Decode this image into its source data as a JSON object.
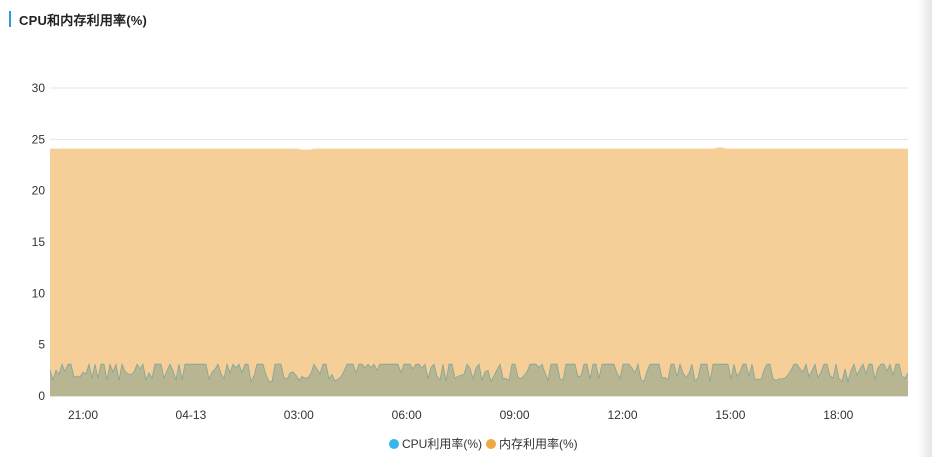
{
  "header": {
    "title": "CPU和内存利用率(%)"
  },
  "colors": {
    "accent": "#2f9ae0",
    "cpu": "#35b6ec",
    "mem": "#f0a840",
    "mem_fill": "#f6cf98",
    "cpu_fill": "#b8b592",
    "grid": "#e6e6e6"
  },
  "chart_data": {
    "type": "area",
    "title": "CPU和内存利用率(%)",
    "ylim": [
      0,
      30
    ],
    "yticks": [
      0,
      5,
      10,
      15,
      20,
      25,
      30
    ],
    "xticks": [
      "21:00",
      "04-13",
      "03:00",
      "06:00",
      "09:00",
      "12:00",
      "15:00",
      "18:00"
    ],
    "x_start": "19:50",
    "x_end": "19:50 (next day)",
    "grid": true,
    "legend_position": "bottom-center",
    "series": [
      {
        "name": "CPU利用率(%)",
        "color": "#35b6ec",
        "baseline": 2.0,
        "peak": 3.1,
        "note_values": "fluctuates between ~1.5 and ~3.1"
      },
      {
        "name": "内存利用率(%)",
        "color": "#f0a840",
        "value": 24.1
      }
    ]
  }
}
